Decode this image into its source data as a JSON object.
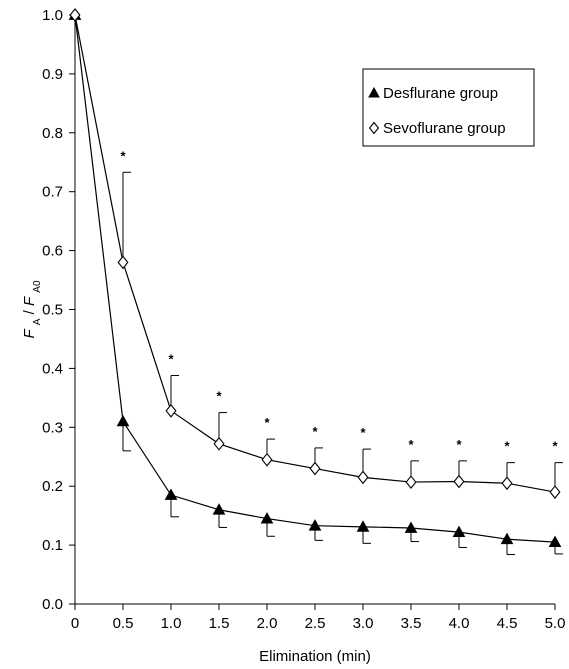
{
  "chart_data": {
    "type": "line",
    "xlabel": "Elimination (min)",
    "ylabel": {
      "main": "F",
      "sub_main": "A",
      "sep": "/",
      "denom": "F",
      "sub_denom": "A0"
    },
    "x": [
      0,
      0.5,
      1.0,
      1.5,
      2.0,
      2.5,
      3.0,
      3.5,
      4.0,
      4.5,
      5.0
    ],
    "x_tick_values": [
      0,
      0.5,
      1.0,
      1.5,
      2.0,
      2.5,
      3.0,
      3.5,
      4.0,
      4.5,
      5.0
    ],
    "x_tick_labels": [
      "0",
      "0.5",
      "1.0",
      "1.5",
      "2.0",
      "2.5",
      "3.0",
      "3.5",
      "4.0",
      "4.5",
      "5.0"
    ],
    "y_tick_values": [
      0,
      0.1,
      0.2,
      0.3,
      0.4,
      0.5,
      0.6,
      0.7,
      0.8,
      0.9,
      1.0
    ],
    "y_tick_labels": [
      "0.0",
      "0.1",
      "0.2",
      "0.3",
      "0.4",
      "0.5",
      "0.6",
      "0.7",
      "0.8",
      "0.9",
      "1.0"
    ],
    "xlim": [
      0,
      5.0
    ],
    "ylim": [
      0,
      1.0
    ],
    "grid": false,
    "legend_position": "top-right",
    "series": [
      {
        "name": "Desflurane group",
        "marker": "filled-triangle",
        "color": "#000000",
        "values": [
          1.0,
          0.31,
          0.185,
          0.16,
          0.145,
          0.133,
          0.131,
          0.129,
          0.122,
          0.11,
          0.105
        ],
        "error_direction": "down",
        "errors": [
          0,
          0.05,
          0.037,
          0.03,
          0.03,
          0.025,
          0.028,
          0.023,
          0.026,
          0.026,
          0.02
        ]
      },
      {
        "name": "Sevoflurane group",
        "marker": "open-diamond",
        "color": "#000000",
        "values": [
          1.0,
          0.58,
          0.328,
          0.272,
          0.245,
          0.23,
          0.215,
          0.207,
          0.208,
          0.205,
          0.19
        ],
        "error_direction": "up",
        "errors": [
          0,
          0.153,
          0.06,
          0.053,
          0.035,
          0.035,
          0.048,
          0.036,
          0.035,
          0.035,
          0.05
        ]
      }
    ],
    "significance_marks": [
      {
        "x": 0.5,
        "label": "*"
      },
      {
        "x": 1.0,
        "label": "*"
      },
      {
        "x": 1.5,
        "label": "*"
      },
      {
        "x": 2.0,
        "label": "*"
      },
      {
        "x": 2.5,
        "label": "*"
      },
      {
        "x": 3.0,
        "label": "*"
      },
      {
        "x": 3.5,
        "label": "*"
      },
      {
        "x": 4.0,
        "label": "*"
      },
      {
        "x": 4.5,
        "label": "*"
      },
      {
        "x": 5.0,
        "label": "*"
      }
    ]
  }
}
